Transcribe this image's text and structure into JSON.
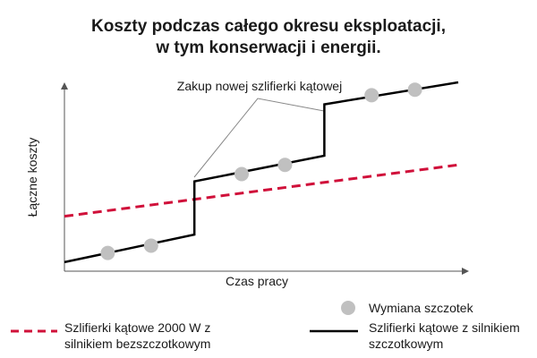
{
  "title_line1": "Koszty podczas całego okresu eksploatacji,",
  "title_line2": "w tym konserwacji i energii.",
  "annotation": "Zakup nowej szlifierki kątowej",
  "colors": {
    "brushless": "#d0103a",
    "brushed": "#000000",
    "marker": "#c0c0c0",
    "axis": "#555555"
  },
  "chart_data": {
    "type": "line",
    "title": "Koszty podczas całego okresu eksploatacji, w tym konserwacji i energii.",
    "xlabel": "Czas pracy",
    "ylabel": "Łączne koszty",
    "xlim": [
      0,
      10
    ],
    "ylim": [
      0,
      10
    ],
    "grid": false,
    "legend_placement": "bottom",
    "series": [
      {
        "name": "Szlifierki kątowe 2000 W z silnikiem bezszczotkowym",
        "style": "dashed",
        "x": [
          0,
          10
        ],
        "y": [
          2.7,
          5.5
        ]
      },
      {
        "name": "Szlifierki kątowe z silnikiem szczotkowym",
        "style": "solid",
        "x": [
          0,
          3.3,
          3.3,
          6.6,
          6.6,
          10
        ],
        "y": [
          0.2,
          1.7,
          4.6,
          6.0,
          8.8,
          10.0
        ]
      }
    ],
    "markers": {
      "name": "Wymiana szczotek",
      "x": [
        1.1,
        2.2,
        4.5,
        5.6,
        7.8,
        8.9
      ],
      "y": [
        0.7,
        1.1,
        5.0,
        5.5,
        9.3,
        9.6
      ]
    }
  },
  "legend": {
    "markers_label": "Wymiana szczotek",
    "brushless_label": "Szlifierki kątowe 2000 W z silnikiem bezszczotkowym",
    "brushed_label": "Szlifierki kątowe z silnikiem szczotkowym"
  }
}
